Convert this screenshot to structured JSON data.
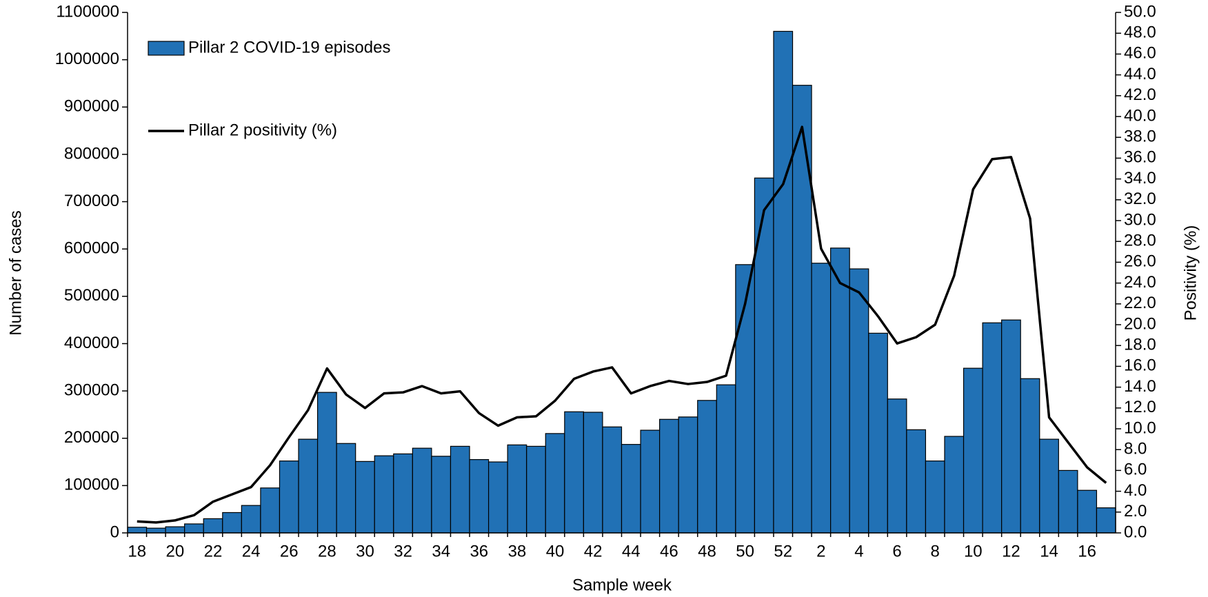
{
  "chart_data": {
    "type": "bar",
    "x_label": "Sample week",
    "y_label": "Number of cases",
    "y2_label": "Positivity (%)",
    "categories": [
      "18",
      null,
      "20",
      null,
      "22",
      null,
      "24",
      null,
      "26",
      null,
      "28",
      null,
      "30",
      null,
      "32",
      null,
      "34",
      null,
      "36",
      null,
      "38",
      null,
      "40",
      null,
      "42",
      null,
      "44",
      null,
      "46",
      null,
      "48",
      null,
      "50",
      null,
      "52",
      null,
      "2",
      null,
      "4",
      null,
      "6",
      null,
      "8",
      null,
      "10",
      null,
      "12",
      null,
      "14",
      null,
      "16",
      null
    ],
    "series": [
      {
        "name": "Pillar 2 COVID-19 episodes",
        "type": "bar",
        "color": "#2171b5",
        "values": [
          12000,
          10000,
          13000,
          19000,
          30000,
          43000,
          58000,
          95000,
          152000,
          198000,
          297000,
          189000,
          151000,
          163000,
          167000,
          179000,
          162000,
          183000,
          155000,
          150000,
          186000,
          183000,
          210000,
          256000,
          255000,
          224000,
          187000,
          217000,
          240000,
          245000,
          280000,
          313000,
          567000,
          750000,
          1060000,
          946000,
          570000,
          602000,
          558000,
          422000,
          283000,
          218000,
          152000,
          204000,
          348000,
          444000,
          450000,
          326000,
          198000,
          132000,
          90000,
          53000
        ]
      },
      {
        "name": "Pillar 2 positivity (%)",
        "type": "line",
        "axis": "y2",
        "color": "#000000",
        "values": [
          1.1,
          1.0,
          1.2,
          1.7,
          3.0,
          3.7,
          4.4,
          6.5,
          9.2,
          11.8,
          15.8,
          13.3,
          12.0,
          13.4,
          13.5,
          14.1,
          13.4,
          13.6,
          11.5,
          10.3,
          11.1,
          11.2,
          12.7,
          14.8,
          15.5,
          15.9,
          13.4,
          14.1,
          14.6,
          14.3,
          14.5,
          15.1,
          22.0,
          31.0,
          33.5,
          39.0,
          27.3,
          24.0,
          23.1,
          20.8,
          18.2,
          18.8,
          20.0,
          24.7,
          33.0,
          35.9,
          36.1,
          30.2,
          11.1,
          8.7,
          6.3,
          4.8
        ]
      }
    ],
    "ylim": [
      0,
      1100000
    ],
    "yticks": [
      0,
      100000,
      200000,
      300000,
      400000,
      500000,
      600000,
      700000,
      800000,
      900000,
      1000000,
      1100000
    ],
    "y2lim": [
      0,
      50
    ],
    "y2ticks": [
      {
        "value": 0,
        "label": "0.0"
      },
      {
        "value": 2,
        "label": "2.0"
      },
      {
        "value": 4,
        "label": "4.0"
      },
      {
        "value": 6,
        "label": "6.0"
      },
      {
        "value": 8,
        "label": "8.0"
      },
      {
        "value": 10,
        "label": "10.0"
      },
      {
        "value": 12,
        "label": "12.0"
      },
      {
        "value": 14,
        "label": "14.0"
      },
      {
        "value": 16,
        "label": "16.0"
      },
      {
        "value": 18,
        "label": "18.0"
      },
      {
        "value": 20,
        "label": "20.0"
      },
      {
        "value": 22,
        "label": "22.0"
      },
      {
        "value": 24,
        "label": "24.0"
      },
      {
        "value": 26,
        "label": "26.0"
      },
      {
        "value": 28,
        "label": "28.0"
      },
      {
        "value": 30,
        "label": "30.0"
      },
      {
        "value": 32,
        "label": "32.0"
      },
      {
        "value": 34,
        "label": "34.0"
      },
      {
        "value": 36,
        "label": "36.0"
      },
      {
        "value": 38,
        "label": "38.0"
      },
      {
        "value": 40,
        "label": "40.0"
      },
      {
        "value": 42,
        "label": "42.0"
      },
      {
        "value": 44,
        "label": "44.0"
      },
      {
        "value": 46,
        "label": "46.0"
      },
      {
        "value": 48,
        "label": "48.0"
      },
      {
        "value": 50,
        "label": "50.0"
      }
    ],
    "legend": "upper left",
    "grid": false
  }
}
